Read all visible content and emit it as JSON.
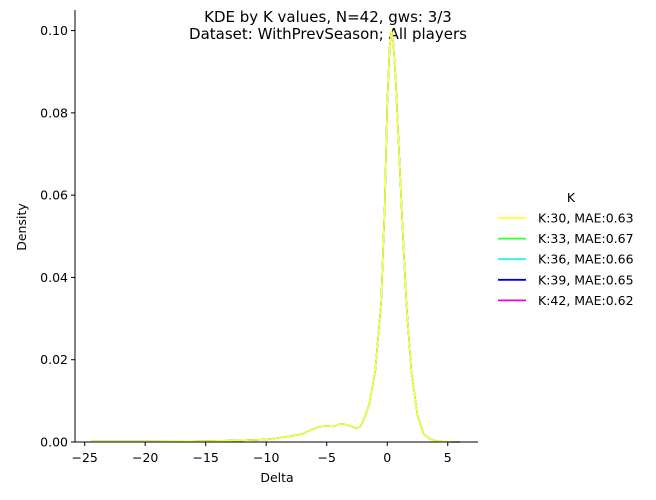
{
  "chart_data": {
    "type": "line",
    "title": "KDE by K values, N=42, gws: 3/3",
    "subtitle": "Dataset: WithPrevSeason; All players",
    "xlabel": "Delta",
    "ylabel": "Density",
    "xlim": [
      -25.8,
      7.5
    ],
    "ylim": [
      0,
      0.105
    ],
    "xticks": [
      -25,
      -20,
      -15,
      -10,
      -5,
      0,
      5
    ],
    "xtick_labels": [
      "−25",
      "−20",
      "−15",
      "−10",
      "−5",
      "0",
      "5"
    ],
    "yticks": [
      0,
      0.02,
      0.04,
      0.06,
      0.08,
      0.1
    ],
    "ytick_labels": [
      "0.00",
      "0.02",
      "0.04",
      "0.06",
      "0.08",
      "0.10"
    ],
    "grid": false,
    "legend": {
      "title": "K",
      "placement": "right"
    },
    "series": [
      {
        "name": "K:30, MAE:0.63",
        "color": "#ffff33"
      },
      {
        "name": "K:33, MAE:0.67",
        "color": "#33ff33"
      },
      {
        "name": "K:36, MAE:0.66",
        "color": "#33eeee"
      },
      {
        "name": "K:39, MAE:0.65",
        "color": "#0000dd"
      },
      {
        "name": "K:42, MAE:0.62",
        "color": "#ee00ee"
      }
    ],
    "x": [
      -24.5,
      -20,
      -15,
      -12,
      -10,
      -9,
      -8,
      -7,
      -6.5,
      -6,
      -5.5,
      -5,
      -4.5,
      -4.2,
      -4,
      -3.7,
      -3.5,
      -3,
      -2.5,
      -2.2,
      -2,
      -1.5,
      -1,
      -0.5,
      -0.2,
      0,
      0.2,
      0.35,
      0.5,
      0.7,
      1,
      1.3,
      1.6,
      2,
      2.5,
      3,
      3.5,
      4,
      4.5,
      5,
      6
    ],
    "y": [
      0.0001,
      0.0001,
      0.0002,
      0.0004,
      0.0006,
      0.001,
      0.0014,
      0.002,
      0.0027,
      0.0033,
      0.0038,
      0.0039,
      0.0038,
      0.004,
      0.0043,
      0.0044,
      0.0043,
      0.0038,
      0.0033,
      0.0038,
      0.005,
      0.009,
      0.017,
      0.034,
      0.058,
      0.082,
      0.096,
      0.1,
      0.097,
      0.088,
      0.069,
      0.05,
      0.033,
      0.017,
      0.0065,
      0.002,
      0.0008,
      0.0003,
      0.0001,
      5e-05,
      0.0
    ]
  }
}
